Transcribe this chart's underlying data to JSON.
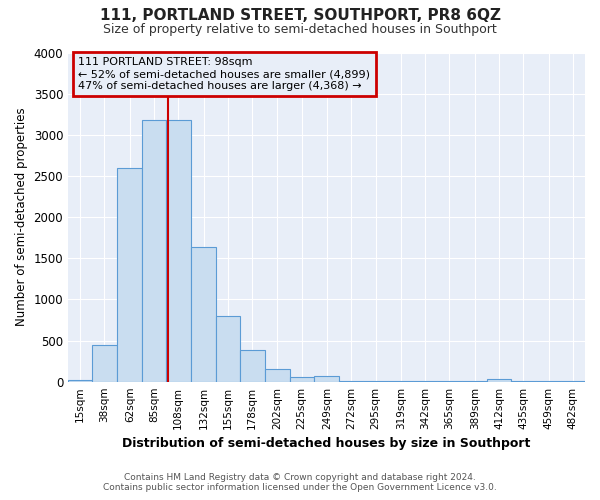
{
  "title": "111, PORTLAND STREET, SOUTHPORT, PR8 6QZ",
  "subtitle": "Size of property relative to semi-detached houses in Southport",
  "xlabel": "Distribution of semi-detached houses by size in Southport",
  "ylabel": "Number of semi-detached properties",
  "categories": [
    "15sqm",
    "38sqm",
    "62sqm",
    "85sqm",
    "108sqm",
    "132sqm",
    "155sqm",
    "178sqm",
    "202sqm",
    "225sqm",
    "249sqm",
    "272sqm",
    "295sqm",
    "319sqm",
    "342sqm",
    "365sqm",
    "389sqm",
    "412sqm",
    "435sqm",
    "459sqm",
    "482sqm"
  ],
  "bar_heights": [
    25,
    450,
    2600,
    3180,
    3180,
    1640,
    800,
    380,
    150,
    60,
    70,
    4,
    4,
    4,
    4,
    4,
    4,
    35,
    4,
    4,
    4
  ],
  "bar_color": "#c9ddf0",
  "bar_edge_color": "#5b9bd5",
  "fig_background": "#ffffff",
  "plot_background": "#e8eef8",
  "grid_color": "#ffffff",
  "red_line_x": 98,
  "annotation_title": "111 PORTLAND STREET: 98sqm",
  "annotation_line1": "← 52% of semi-detached houses are smaller (4,899)",
  "annotation_line2": "47% of semi-detached houses are larger (4,368) →",
  "annotation_box_color": "#cc0000",
  "ylim_max": 4000,
  "yticks": [
    0,
    500,
    1000,
    1500,
    2000,
    2500,
    3000,
    3500,
    4000
  ],
  "footnote1": "Contains HM Land Registry data © Crown copyright and database right 2024.",
  "footnote2": "Contains public sector information licensed under the Open Government Licence v3.0."
}
